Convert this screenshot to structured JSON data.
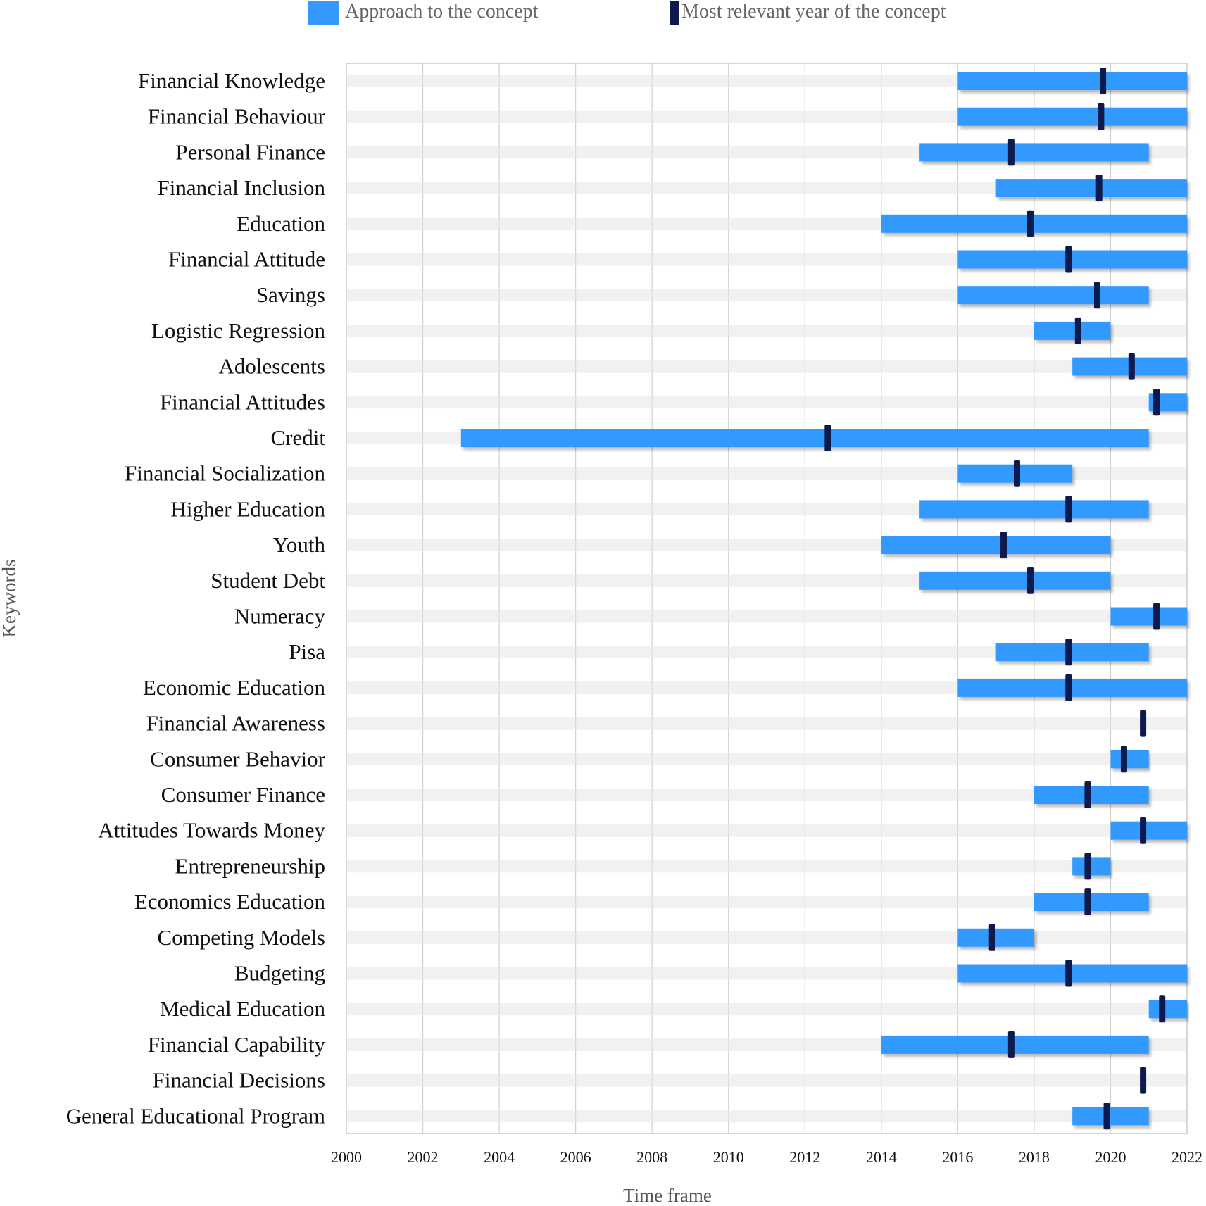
{
  "chart_data": {
    "type": "bar",
    "orientation": "horizontal-range",
    "xlabel": "Time frame",
    "ylabel": "Keywords",
    "xlim": [
      2000,
      2022
    ],
    "xticks": [
      2000,
      2002,
      2004,
      2006,
      2008,
      2010,
      2012,
      2014,
      2016,
      2018,
      2020,
      2022
    ],
    "grid": "vertical",
    "legend": {
      "placement": "top",
      "items": [
        {
          "label": "Approach to the concept",
          "color": "#3399ff"
        },
        {
          "label": "Most relevant year of the concept",
          "color": "#0d1a4d"
        }
      ]
    },
    "categories": [
      {
        "label": "Financial Knowledge",
        "start": 2016,
        "end": 2022,
        "peak": 2019.8
      },
      {
        "label": "Financial Behaviour",
        "start": 2016,
        "end": 2022,
        "peak": 2019.75
      },
      {
        "label": "Personal Finance",
        "start": 2015,
        "end": 2021,
        "peak": 2017.4
      },
      {
        "label": "Financial Inclusion",
        "start": 2017,
        "end": 2022,
        "peak": 2019.7
      },
      {
        "label": "Education",
        "start": 2014,
        "end": 2022,
        "peak": 2017.9
      },
      {
        "label": "Financial Attitude",
        "start": 2016,
        "end": 2022,
        "peak": 2018.9
      },
      {
        "label": "Savings",
        "start": 2016,
        "end": 2021,
        "peak": 2019.65
      },
      {
        "label": "Logistic Regression",
        "start": 2018,
        "end": 2020,
        "peak": 2019.15
      },
      {
        "label": "Adolescents",
        "start": 2019,
        "end": 2022,
        "peak": 2020.55
      },
      {
        "label": "Financial Attitudes",
        "start": 2021,
        "end": 2022,
        "peak": 2021.2
      },
      {
        "label": "Credit",
        "start": 2003,
        "end": 2021,
        "peak": 2012.6
      },
      {
        "label": "Financial Socialization",
        "start": 2016,
        "end": 2019,
        "peak": 2017.55
      },
      {
        "label": "Higher Education",
        "start": 2015,
        "end": 2021,
        "peak": 2018.9
      },
      {
        "label": "Youth",
        "start": 2014,
        "end": 2020,
        "peak": 2017.2
      },
      {
        "label": "Student Debt",
        "start": 2015,
        "end": 2020,
        "peak": 2017.9
      },
      {
        "label": "Numeracy",
        "start": 2020,
        "end": 2022,
        "peak": 2021.2
      },
      {
        "label": "Pisa",
        "start": 2017,
        "end": 2021,
        "peak": 2018.9
      },
      {
        "label": "Economic Education",
        "start": 2016,
        "end": 2022,
        "peak": 2018.9
      },
      {
        "label": "Financial Awareness",
        "start": null,
        "end": null,
        "peak": 2020.85
      },
      {
        "label": "Consumer Behavior",
        "start": 2020,
        "end": 2021,
        "peak": 2020.35
      },
      {
        "label": "Consumer Finance",
        "start": 2018,
        "end": 2021,
        "peak": 2019.4
      },
      {
        "label": "Attitudes Towards Money",
        "start": 2020,
        "end": 2022,
        "peak": 2020.85
      },
      {
        "label": "Entrepreneurship",
        "start": 2019,
        "end": 2020,
        "peak": 2019.4
      },
      {
        "label": "Economics Education",
        "start": 2018,
        "end": 2021,
        "peak": 2019.4
      },
      {
        "label": "Competing Models",
        "start": 2016,
        "end": 2018,
        "peak": 2016.9
      },
      {
        "label": "Budgeting",
        "start": 2016,
        "end": 2022,
        "peak": 2018.9
      },
      {
        "label": "Medical Education",
        "start": 2021,
        "end": 2022,
        "peak": 2021.35
      },
      {
        "label": "Financial Capability",
        "start": 2014,
        "end": 2021,
        "peak": 2017.4
      },
      {
        "label": "Financial Decisions",
        "start": null,
        "end": null,
        "peak": 2020.85
      },
      {
        "label": "General Educational Program",
        "start": 2019,
        "end": 2021,
        "peak": 2019.9
      }
    ]
  }
}
